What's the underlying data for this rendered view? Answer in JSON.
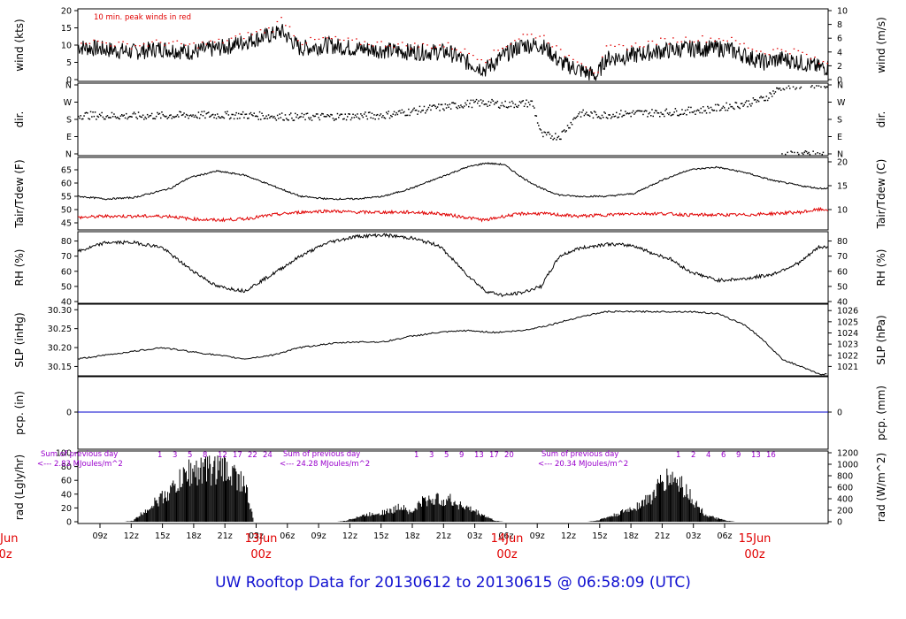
{
  "footer_title": "UW Rooftop Data for 20130612  to  20130615 @ 06:58:09  (UTC)",
  "colors": {
    "axis": "#000000",
    "peak": "#e00000",
    "tdew": "#e00000",
    "pcp": "#0000cc",
    "title": "#1010d0",
    "day": "#e00000",
    "rad_note": "#9900cc"
  },
  "chart_data": [
    {
      "type": "line",
      "panel": "wind",
      "ylabel_left": "wind (kts)",
      "ylabel_right": "wind (m/s)",
      "annotation": "10 min. peak winds in red",
      "yticks_left": [
        "0",
        "5",
        "10",
        "15",
        "20"
      ],
      "ylim_left": [
        0,
        20
      ],
      "yticks_right": [
        "0",
        "2",
        "4",
        "6",
        "8",
        "10"
      ],
      "ylim_right": [
        0,
        10
      ],
      "x_hours": [
        0,
        6,
        9,
        12,
        15,
        16,
        18,
        21,
        22,
        24,
        27,
        30,
        36,
        40,
        42,
        44,
        46,
        48,
        50,
        51,
        52,
        54,
        56,
        57,
        60,
        62,
        66,
        70,
        72,
        74,
        76,
        78,
        80
      ],
      "series": [
        {
          "values": [
            9.5,
            8,
            9,
            8,
            9,
            9.5,
            11,
            13,
            14,
            9,
            10,
            9,
            8,
            8,
            5,
            3,
            7,
            10,
            10,
            8,
            5,
            3,
            1,
            6,
            7,
            8,
            9,
            9,
            7,
            5,
            6,
            5,
            3.5
          ]
        },
        {
          "values": [
            11.5,
            10,
            11,
            10,
            11,
            11.5,
            13,
            15,
            18,
            11,
            12,
            11,
            10,
            10,
            8,
            6,
            10,
            13,
            13,
            11,
            8,
            6,
            2,
            9,
            10,
            11,
            12,
            12,
            10,
            8,
            9,
            8,
            5
          ]
        }
      ]
    },
    {
      "type": "scatter",
      "panel": "dir",
      "ylabel_left": "dir.",
      "ylabel_right": "dir.",
      "yticks": [
        "N",
        "E",
        "S",
        "W",
        "N"
      ],
      "ylim": [
        0,
        360
      ],
      "x_hours": [
        0,
        6,
        12,
        18,
        24,
        30,
        33,
        36,
        38,
        40,
        42,
        44,
        46,
        48,
        49,
        50,
        52,
        54,
        56,
        58,
        60,
        64,
        68,
        70,
        72,
        74,
        76,
        78,
        80
      ],
      "values": [
        205,
        200,
        205,
        205,
        195,
        200,
        205,
        225,
        240,
        250,
        265,
        270,
        260,
        265,
        270,
        100,
        95,
        215,
        205,
        210,
        215,
        220,
        235,
        250,
        265,
        290,
        355,
        360,
        358
      ]
    },
    {
      "type": "line",
      "panel": "temp",
      "ylabel_left": "Tair/Tdew (F)",
      "ylabel_right": "Tair/Tdew (C)",
      "yticks_left": [
        "45",
        "50",
        "55",
        "60",
        "65"
      ],
      "ylim_left": [
        43,
        69
      ],
      "yticks_right": [
        "10",
        "15",
        "20"
      ],
      "x_hours": [
        0,
        3,
        6,
        10,
        12,
        15,
        18,
        21,
        24,
        27,
        30,
        33,
        36,
        39,
        42,
        44,
        46,
        48,
        50,
        52,
        54,
        57,
        60,
        63,
        66,
        69,
        72,
        75,
        78,
        80
      ],
      "series": [
        {
          "name": "Tair",
          "values": [
            55,
            54,
            54.5,
            58,
            62,
            64.5,
            63,
            59,
            55,
            54,
            54,
            55,
            58,
            62,
            66,
            67.5,
            67,
            62,
            58,
            55.5,
            55,
            55,
            56,
            61,
            65,
            66,
            64,
            61,
            59,
            58
          ]
        },
        {
          "name": "Tdew",
          "values": [
            47,
            47.5,
            47.5,
            47.5,
            46.5,
            46,
            46.5,
            48,
            49,
            49.5,
            49,
            49,
            49,
            48.5,
            47,
            46,
            47.5,
            48.5,
            48.5,
            48,
            47.5,
            48,
            48.5,
            48.5,
            48,
            48,
            48,
            48.5,
            49,
            50
          ]
        }
      ]
    },
    {
      "type": "line",
      "panel": "rh",
      "ylabel_left": "RH (%)",
      "ylabel_right": "RH (%)",
      "yticks": [
        "40",
        "50",
        "60",
        "70",
        "80"
      ],
      "ylim": [
        40,
        85
      ],
      "x_hours": [
        0,
        3,
        6,
        9,
        12,
        15,
        18,
        21,
        24,
        27,
        30,
        33,
        36,
        39,
        42,
        44,
        46,
        48,
        50,
        52,
        54,
        57,
        60,
        62,
        64,
        66,
        69,
        72,
        75,
        78,
        80
      ],
      "values": [
        73,
        79,
        79,
        76,
        62,
        50,
        47,
        58,
        70,
        79,
        83,
        84,
        82,
        77,
        58,
        47,
        44,
        46,
        50,
        70,
        75,
        78,
        77,
        72,
        68,
        60,
        54,
        55,
        58,
        66,
        76
      ]
    },
    {
      "type": "line",
      "panel": "slp",
      "ylabel_left": "SLP (inHg)",
      "ylabel_right": "SLP (hPa)",
      "yticks_left": [
        "30.15",
        "30.20",
        "30.25",
        "30.30"
      ],
      "ylim_left": [
        30.13,
        30.31
      ],
      "yticks_right": [
        "1021",
        "1022",
        "1023",
        "1024",
        "1025",
        "1026"
      ],
      "x_hours": [
        0,
        3,
        6,
        9,
        12,
        15,
        18,
        21,
        24,
        27,
        30,
        33,
        36,
        39,
        42,
        45,
        48,
        51,
        54,
        57,
        60,
        63,
        66,
        69,
        72,
        74,
        76,
        78,
        80
      ],
      "values": [
        30.17,
        30.18,
        30.19,
        30.2,
        30.19,
        30.18,
        30.17,
        30.18,
        30.2,
        30.21,
        30.215,
        30.215,
        30.23,
        30.24,
        30.245,
        30.24,
        30.245,
        30.26,
        30.28,
        30.295,
        30.295,
        30.295,
        30.295,
        30.29,
        30.26,
        30.22,
        30.17,
        30.15,
        30.13
      ]
    },
    {
      "type": "line",
      "panel": "pcp",
      "ylabel_left": "pcp. (in)",
      "ylabel_right": "pcp. (mm)",
      "yticks_left": [
        "0"
      ],
      "yticks_right": [
        "0"
      ],
      "values": [
        0,
        0
      ]
    },
    {
      "type": "area",
      "panel": "rad",
      "ylabel_left": "rad (Lgly/hr)",
      "ylabel_right": "rad (W/m^2)",
      "yticks_left": [
        "0",
        "20",
        "40",
        "60",
        "80",
        "100"
      ],
      "ylim_left": [
        0,
        100
      ],
      "yticks_right": [
        "0",
        "200",
        "400",
        "600",
        "800",
        "1000",
        "1200"
      ],
      "x_hours": [
        0,
        5,
        6,
        8,
        10,
        12,
        14,
        16,
        18,
        19,
        28,
        29,
        30,
        32,
        34,
        35,
        36,
        37,
        38,
        39,
        40,
        42,
        44,
        45,
        46,
        55,
        56,
        58,
        60,
        62,
        63,
        64,
        65,
        66,
        67,
        68,
        70,
        71
      ],
      "values": [
        0,
        0,
        2,
        30,
        55,
        90,
        95,
        95,
        70,
        0,
        0,
        2,
        8,
        15,
        20,
        30,
        15,
        35,
        40,
        40,
        40,
        25,
        10,
        2,
        0,
        0,
        2,
        12,
        25,
        45,
        70,
        80,
        70,
        50,
        25,
        10,
        2,
        0
      ],
      "annotations": [
        {
          "label": "Sum of previous day",
          "value": "<--- 2.83 MJoules/m^2"
        },
        {
          "label": "Sum of previous day",
          "value": "<--- 24.28 MJoules/m^2"
        },
        {
          "label": "Sum of previous day",
          "value": "<--- 20.34 MJoules/m^2"
        }
      ],
      "hour_marks": [
        [
          "1",
          "3",
          "5",
          "8",
          "12",
          "17",
          "22",
          "24"
        ],
        [
          "1",
          "3",
          "5",
          "9",
          "13",
          "17",
          "20"
        ],
        [
          "1",
          "2",
          "4",
          "6",
          "9",
          "13",
          "16"
        ]
      ]
    }
  ],
  "x_axis": {
    "hour_ticks": [
      "09z",
      "12z",
      "15z",
      "18z",
      "21z",
      "03z",
      "06z",
      "09z",
      "12z",
      "15z",
      "18z",
      "21z",
      "03z",
      "06z",
      "09z",
      "12z",
      "15z",
      "18z",
      "21z",
      "03z",
      "06z"
    ],
    "day_labels": [
      {
        "date": "12Jun",
        "time": "00z"
      },
      {
        "date": "13Jun",
        "time": "00z"
      },
      {
        "date": "14Jun",
        "time": "00z"
      },
      {
        "date": "15Jun",
        "time": "00z"
      }
    ]
  }
}
